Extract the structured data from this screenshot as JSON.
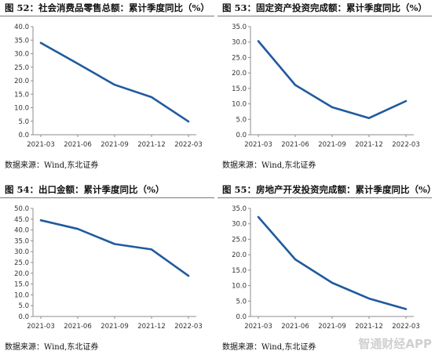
{
  "panels": [
    {
      "title": "图  52：社会消费品零售总额：累计季度同比（%）",
      "source": "数据来源：Wind,东北证券"
    },
    {
      "title": "图  53：固定资产投资完成额：累计季度同比（%）",
      "source": "数据来源：Wind,东北证券"
    },
    {
      "title": "图  54：出口金额：累计季度同比（%）",
      "source": "数据来源：Wind,东北证券"
    },
    {
      "title": "图  55：房地产开发投资完成额：累计季度同比（%）",
      "source": "数据来源：Wind,东北证券"
    }
  ],
  "watermark": "智通财经APP",
  "colors": {
    "line": "#1f5b9e",
    "axis": "#8c8c8c",
    "text": "#333333"
  },
  "chart_data": [
    {
      "type": "line",
      "categories": [
        "2021-03",
        "2021-06",
        "2021-09",
        "2021-12",
        "2022-03"
      ],
      "values": [
        34.0,
        26.3,
        18.5,
        13.9,
        4.9
      ],
      "ylim": [
        0,
        40
      ],
      "yticks": [
        "0.0",
        "5.0",
        "10.0",
        "15.0",
        "20.0",
        "25.0",
        "30.0",
        "35.0",
        "40.0"
      ],
      "grid": false
    },
    {
      "type": "line",
      "categories": [
        "2021-03",
        "2021-06",
        "2021-09",
        "2021-12",
        "2022-03"
      ],
      "values": [
        30.3,
        16.1,
        8.9,
        5.4,
        10.9
      ],
      "ylim": [
        0,
        35
      ],
      "yticks": [
        "0.0",
        "5.0",
        "10.0",
        "15.0",
        "20.0",
        "25.0",
        "30.0",
        "35.0"
      ],
      "grid": false
    },
    {
      "type": "line",
      "categories": [
        "2021-03",
        "2021-06",
        "2021-09",
        "2021-12",
        "2022-03"
      ],
      "values": [
        44.5,
        40.5,
        33.5,
        31.0,
        18.8
      ],
      "ylim": [
        0,
        50
      ],
      "yticks": [
        "0.0",
        "5.0",
        "10.0",
        "15.0",
        "20.0",
        "25.0",
        "30.0",
        "35.0",
        "40.0",
        "45.0",
        "50.0"
      ],
      "grid": false
    },
    {
      "type": "line",
      "categories": [
        "2021-03",
        "2021-06",
        "2021-09",
        "2021-12",
        "2022-03"
      ],
      "values": [
        32.2,
        18.5,
        10.9,
        5.8,
        2.4
      ],
      "ylim": [
        0,
        35
      ],
      "yticks": [
        "0.0",
        "5.0",
        "10.0",
        "15.0",
        "20.0",
        "25.0",
        "30.0",
        "35.0"
      ],
      "grid": false
    }
  ]
}
